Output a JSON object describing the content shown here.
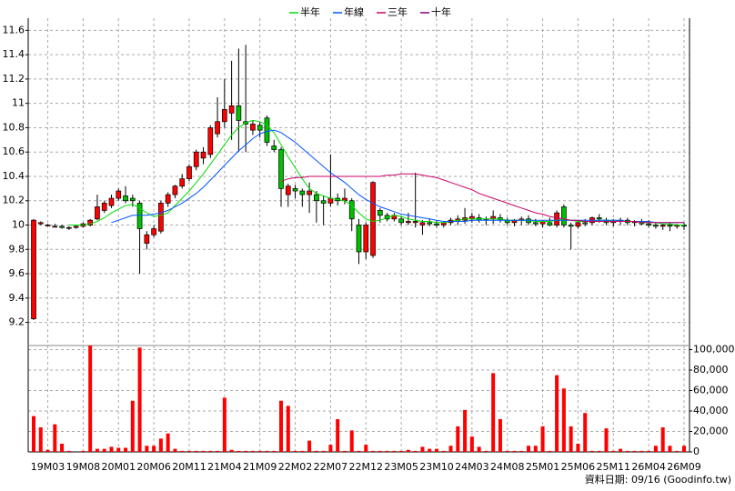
{
  "chart_data": {
    "type": "candlestick",
    "legend": "top",
    "footer": "資料日期: 09/16   (Goodinfo.tw)",
    "grid": true,
    "up_color": "#ff0000",
    "down_color": "#00c000",
    "categories": [
      null,
      null,
      "19M03",
      null,
      null,
      null,
      null,
      "19M08",
      null,
      null,
      null,
      null,
      "20M01",
      null,
      null,
      null,
      null,
      "20M06",
      null,
      null,
      null,
      null,
      "20M11",
      null,
      null,
      null,
      null,
      "21M04",
      null,
      null,
      null,
      null,
      "21M09",
      null,
      null,
      null,
      null,
      "22M02",
      null,
      null,
      null,
      null,
      "22M07",
      null,
      null,
      null,
      null,
      "22M12",
      null,
      null,
      null,
      null,
      "23M05",
      null,
      null,
      null,
      null,
      "23M10",
      null,
      null,
      null,
      null,
      "24M03",
      null,
      null,
      null,
      null,
      "24M08",
      null,
      null,
      null,
      null,
      "25M01",
      null,
      null,
      null,
      null,
      "25M06",
      null,
      null,
      null,
      null,
      "25M11",
      null,
      null,
      null,
      null,
      "26M04",
      null,
      null,
      null,
      null,
      "26M09"
    ],
    "open": [
      9.23,
      10.01,
      10.0,
      9.99,
      9.99,
      9.98,
      9.98,
      9.99,
      10.0,
      10.05,
      10.12,
      10.16,
      10.22,
      10.24,
      10.22,
      10.18,
      9.85,
      9.92,
      9.95,
      10.18,
      10.25,
      10.32,
      10.38,
      10.48,
      10.55,
      10.58,
      10.75,
      10.85,
      10.92,
      10.98,
      10.85,
      10.78,
      10.82,
      10.88,
      10.65,
      10.62,
      10.25,
      10.3,
      10.28,
      10.25,
      10.25,
      10.2,
      10.18,
      10.22,
      10.2,
      10.2,
      10.0,
      9.78,
      9.75,
      10.12,
      10.08,
      10.05,
      10.05,
      10.02,
      10.02,
      10.0,
      10.02,
      10.01,
      10.0,
      10.02,
      10.03,
      10.04,
      10.05,
      10.06,
      10.04,
      10.05,
      10.06,
      10.04,
      10.02,
      10.04,
      10.05,
      10.02,
      10.01,
      10.02,
      10.0,
      10.15,
      10.0,
      9.99,
      10.02,
      10.02,
      10.06,
      10.04,
      10.02,
      10.03,
      10.04,
      10.02,
      10.03,
      10.01,
      10.0,
      9.99,
      10.0,
      9.99,
      10.0
    ],
    "high": [
      10.05,
      10.03,
      10.01,
      10.01,
      10.0,
      9.99,
      10.0,
      10.02,
      10.05,
      10.25,
      10.2,
      10.25,
      10.3,
      10.32,
      10.25,
      10.2,
      9.95,
      10.0,
      10.2,
      10.27,
      10.33,
      10.42,
      10.5,
      10.62,
      10.64,
      10.82,
      11.05,
      11.2,
      11.35,
      11.45,
      11.48,
      10.86,
      10.85,
      10.9,
      10.7,
      10.64,
      10.34,
      10.33,
      10.3,
      10.35,
      10.28,
      10.24,
      10.58,
      10.26,
      10.3,
      10.22,
      10.05,
      10.02,
      10.36,
      10.14,
      10.1,
      10.1,
      10.07,
      10.1,
      10.43,
      10.04,
      10.05,
      10.04,
      10.03,
      10.06,
      10.08,
      10.14,
      10.1,
      10.09,
      10.07,
      10.12,
      10.09,
      10.06,
      10.05,
      10.07,
      10.08,
      10.05,
      10.04,
      10.06,
      10.12,
      10.17,
      10.02,
      10.03,
      10.05,
      10.07,
      10.09,
      10.06,
      10.05,
      10.06,
      10.06,
      10.04,
      10.05,
      10.04,
      10.02,
      10.01,
      10.02,
      10.01,
      10.02
    ],
    "low": [
      9.22,
      10.0,
      9.99,
      9.98,
      9.97,
      9.96,
      9.97,
      9.98,
      9.99,
      10.04,
      10.1,
      10.14,
      10.2,
      10.18,
      10.15,
      9.6,
      9.8,
      9.9,
      9.93,
      10.15,
      10.22,
      10.3,
      10.36,
      10.45,
      10.5,
      10.55,
      10.72,
      10.8,
      10.7,
      10.6,
      10.6,
      10.74,
      10.72,
      10.65,
      10.6,
      10.15,
      10.15,
      10.22,
      10.15,
      10.1,
      10.02,
      10.0,
      10.15,
      10.16,
      10.17,
      9.95,
      9.68,
      9.72,
      9.73,
      10.02,
      10.03,
      10.03,
      10.0,
      10.0,
      9.98,
      9.92,
      9.99,
      9.98,
      9.98,
      10.0,
      10.0,
      10.01,
      10.02,
      10.02,
      10.0,
      10.01,
      10.02,
      10.0,
      9.99,
      10.0,
      10.0,
      9.99,
      9.98,
      9.99,
      9.98,
      9.98,
      9.8,
      9.97,
      9.99,
      10.0,
      10.02,
      10.0,
      9.99,
      10.0,
      10.0,
      9.99,
      10.0,
      9.98,
      9.97,
      9.96,
      9.95,
      9.97,
      9.96
    ],
    "close": [
      10.04,
      10.02,
      10.0,
      9.99,
      9.98,
      9.98,
      9.99,
      10.01,
      10.04,
      10.15,
      10.18,
      10.22,
      10.28,
      10.2,
      10.2,
      9.97,
      9.92,
      9.97,
      10.18,
      10.25,
      10.32,
      10.38,
      10.48,
      10.6,
      10.6,
      10.8,
      10.85,
      10.95,
      10.98,
      10.86,
      10.83,
      10.83,
      10.78,
      10.68,
      10.62,
      10.3,
      10.32,
      10.28,
      10.25,
      10.28,
      10.2,
      10.18,
      10.22,
      10.2,
      10.22,
      10.05,
      9.78,
      10.0,
      10.35,
      10.08,
      10.05,
      10.08,
      10.02,
      10.03,
      10.03,
      10.02,
      10.01,
      10.0,
      10.02,
      10.04,
      10.05,
      10.06,
      10.07,
      10.04,
      10.05,
      10.07,
      10.04,
      10.02,
      10.04,
      10.05,
      10.02,
      10.01,
      10.03,
      10.0,
      10.1,
      10.0,
      9.99,
      10.02,
      10.01,
      10.06,
      10.05,
      10.02,
      10.03,
      10.04,
      10.02,
      10.03,
      10.01,
      10.0,
      9.99,
      10.0,
      9.99,
      10.0,
      9.99
    ],
    "series": [
      {
        "name": "半年",
        "color": "#00dd00",
        "values": [
          null,
          null,
          null,
          null,
          null,
          10.0,
          10.0,
          10.0,
          10.01,
          10.03,
          10.06,
          10.1,
          10.13,
          10.16,
          10.17,
          10.14,
          10.1,
          10.07,
          10.08,
          10.1,
          10.16,
          10.22,
          10.28,
          10.35,
          10.42,
          10.5,
          10.58,
          10.66,
          10.74,
          10.8,
          10.84,
          10.86,
          10.85,
          10.82,
          10.76,
          10.66,
          10.56,
          10.47,
          10.38,
          10.3,
          10.26,
          10.24,
          10.22,
          10.21,
          10.2,
          10.16,
          10.1,
          10.05,
          10.03,
          10.04,
          10.06,
          10.08,
          10.07,
          10.05,
          10.04,
          10.03,
          10.03,
          10.02,
          10.02,
          10.03,
          10.04,
          10.05,
          10.05,
          10.05,
          10.05,
          10.05,
          10.05,
          10.04,
          10.04,
          10.04,
          10.04,
          10.03,
          10.03,
          10.03,
          10.04,
          10.05,
          10.04,
          10.03,
          10.03,
          10.03,
          10.04,
          10.04,
          10.04,
          10.03,
          10.03,
          10.03,
          10.03,
          10.02,
          10.02,
          10.01,
          10.01,
          10.0,
          10.0
        ]
      },
      {
        "name": "年線",
        "color": "#0055ff",
        "values": [
          null,
          null,
          null,
          null,
          null,
          null,
          null,
          null,
          null,
          null,
          null,
          10.02,
          10.04,
          10.06,
          10.08,
          10.08,
          10.08,
          10.09,
          10.1,
          10.12,
          10.15,
          10.18,
          10.22,
          10.26,
          10.31,
          10.37,
          10.43,
          10.49,
          10.55,
          10.61,
          10.66,
          10.71,
          10.75,
          10.77,
          10.78,
          10.76,
          10.72,
          10.68,
          10.63,
          10.58,
          10.53,
          10.48,
          10.43,
          10.39,
          10.35,
          10.3,
          10.25,
          10.21,
          10.18,
          10.15,
          10.13,
          10.11,
          10.09,
          10.08,
          10.07,
          10.06,
          10.05,
          10.04,
          10.03,
          10.03,
          10.03,
          10.03,
          10.04,
          10.04,
          10.04,
          10.04,
          10.04,
          10.04,
          10.04,
          10.04,
          10.04,
          10.04,
          10.04,
          10.04,
          10.04,
          10.04,
          10.04,
          10.04,
          10.04,
          10.04,
          10.04,
          10.04,
          10.04,
          10.04,
          10.03,
          10.03,
          10.03,
          10.03,
          10.02,
          10.02,
          10.02,
          10.02,
          10.02
        ]
      },
      {
        "name": "三年",
        "color": "#cc0066",
        "values": [
          null,
          null,
          null,
          null,
          null,
          null,
          null,
          null,
          null,
          null,
          null,
          null,
          null,
          null,
          null,
          null,
          null,
          null,
          null,
          null,
          null,
          null,
          null,
          null,
          null,
          null,
          null,
          null,
          null,
          null,
          null,
          null,
          null,
          null,
          null,
          10.36,
          10.38,
          10.39,
          10.39,
          10.4,
          10.4,
          10.4,
          10.4,
          10.4,
          10.4,
          10.4,
          10.4,
          10.4,
          10.4,
          10.4,
          10.41,
          10.41,
          10.42,
          10.42,
          10.42,
          10.41,
          10.4,
          10.39,
          10.37,
          10.35,
          10.33,
          10.31,
          10.29,
          10.26,
          10.24,
          10.22,
          10.2,
          10.18,
          10.16,
          10.14,
          10.12,
          10.1,
          10.09,
          10.07,
          10.06,
          10.05,
          10.04,
          10.04,
          10.03,
          10.03,
          10.03,
          10.03,
          10.03,
          10.03,
          10.03,
          10.03,
          10.02,
          10.02,
          10.02,
          10.02,
          10.02,
          10.02,
          10.02
        ]
      },
      {
        "name": "十年",
        "color": "#800080",
        "values": [
          null,
          null,
          null,
          null,
          null,
          null,
          null,
          null,
          null,
          null,
          null,
          null,
          null,
          null,
          null,
          null,
          null,
          null,
          null,
          null,
          null,
          null,
          null,
          null,
          null,
          null,
          null,
          null,
          null,
          null,
          null,
          null,
          null,
          null,
          null,
          null,
          null,
          null,
          null,
          null,
          null,
          null,
          null,
          null,
          null,
          null,
          null,
          null,
          null,
          null,
          null,
          null,
          null,
          null,
          null,
          null,
          null,
          null,
          null,
          null,
          null,
          null,
          null,
          null,
          null,
          null,
          null,
          null,
          null,
          null,
          null,
          null,
          null,
          null,
          null,
          null,
          null,
          null,
          null,
          null,
          null,
          null,
          null,
          null,
          null,
          null,
          null,
          null,
          null,
          null,
          null,
          null,
          null
        ]
      }
    ],
    "ylim": [
      9.01,
      11.7
    ],
    "yticks": [
      9.2,
      9.4,
      9.6,
      9.8,
      10,
      10.2,
      10.4,
      10.6,
      10.8,
      11,
      11.2,
      11.4,
      11.6
    ],
    "volume": {
      "color": "#ff0000",
      "values": [
        35000,
        24000,
        2000,
        27000,
        8000,
        1000,
        0,
        1000,
        104000,
        3000,
        3000,
        5000,
        4000,
        4000,
        50000,
        102000,
        6000,
        6000,
        13000,
        18000,
        3000,
        1000,
        1000,
        1000,
        1000,
        1000,
        1000,
        53000,
        2000,
        1000,
        1000,
        1000,
        1000,
        1000,
        1000,
        50000,
        45000,
        1000,
        1000,
        11000,
        1000,
        1000,
        7000,
        32000,
        1000,
        21000,
        1000,
        7000,
        1000,
        1000,
        1000,
        1000,
        1000,
        2000,
        1000,
        5000,
        3000,
        3000,
        1000,
        6000,
        25000,
        41000,
        15000,
        5000,
        1000,
        77000,
        32000,
        1000,
        1000,
        1000,
        6000,
        6000,
        25000,
        1000,
        75000,
        62000,
        25000,
        8000,
        38000,
        1000,
        1000,
        23000,
        1000,
        3000,
        1000,
        1000,
        1000,
        1000,
        6000,
        24000,
        6000,
        1000,
        6000
      ],
      "ylim": [
        0,
        104000
      ],
      "yticks": [
        0,
        {
          "value": 20000,
          "label": "20,000"
        },
        {
          "value": 40000,
          "label": "40,000"
        },
        {
          "value": 60000,
          "label": "60,000"
        },
        {
          "value": 80000,
          "label": "80,000"
        },
        {
          "value": 100000,
          "label": "100,000"
        }
      ]
    }
  }
}
